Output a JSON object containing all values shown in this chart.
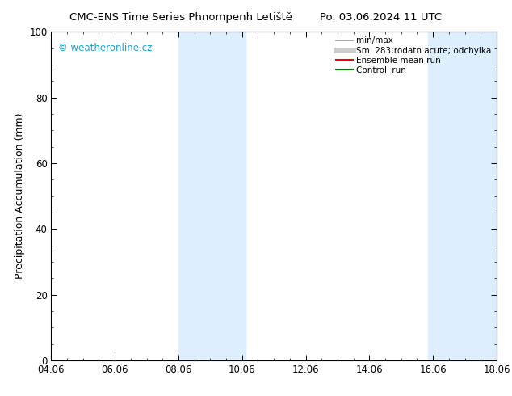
{
  "title_left": "CMC-ENS Time Series Phnompenh Letiště",
  "title_right": "Po. 03.06.2024 11 UTC",
  "ylabel": "Precipitation Accumulation (mm)",
  "ylim": [
    0,
    100
  ],
  "xtick_labels": [
    "04.06",
    "06.06",
    "08.06",
    "10.06",
    "12.06",
    "14.06",
    "16.06",
    "18.06"
  ],
  "xtick_positions": [
    0,
    2,
    4,
    6,
    8,
    10,
    12,
    14
  ],
  "xlim": [
    0,
    14
  ],
  "shaded_regions": [
    {
      "x_start": 4.0,
      "x_end": 6.1,
      "color": "#ddeeff"
    },
    {
      "x_start": 11.85,
      "x_end": 14.0,
      "color": "#ddeeff"
    }
  ],
  "legend_entries": [
    {
      "label": "min/max",
      "color": "#999999",
      "linewidth": 1.2,
      "linestyle": "-"
    },
    {
      "label": "Sm  283;rodatn acute; odchylka",
      "color": "#cccccc",
      "linewidth": 5,
      "linestyle": "-"
    },
    {
      "label": "Ensemble mean run",
      "color": "red",
      "linewidth": 1.5,
      "linestyle": "-"
    },
    {
      "label": "Controll run",
      "color": "green",
      "linewidth": 1.5,
      "linestyle": "-"
    }
  ],
  "watermark_text": "© weatheronline.cz",
  "watermark_color": "#1a9fd9",
  "background_color": "#ffffff",
  "plot_bg_color": "#ffffff",
  "title_fontsize": 9.5,
  "label_fontsize": 9,
  "tick_fontsize": 8.5,
  "legend_fontsize": 7.5,
  "ytick_labels": [
    "0",
    "20",
    "40",
    "60",
    "80",
    "100"
  ],
  "ytick_positions": [
    0,
    20,
    40,
    60,
    80,
    100
  ]
}
